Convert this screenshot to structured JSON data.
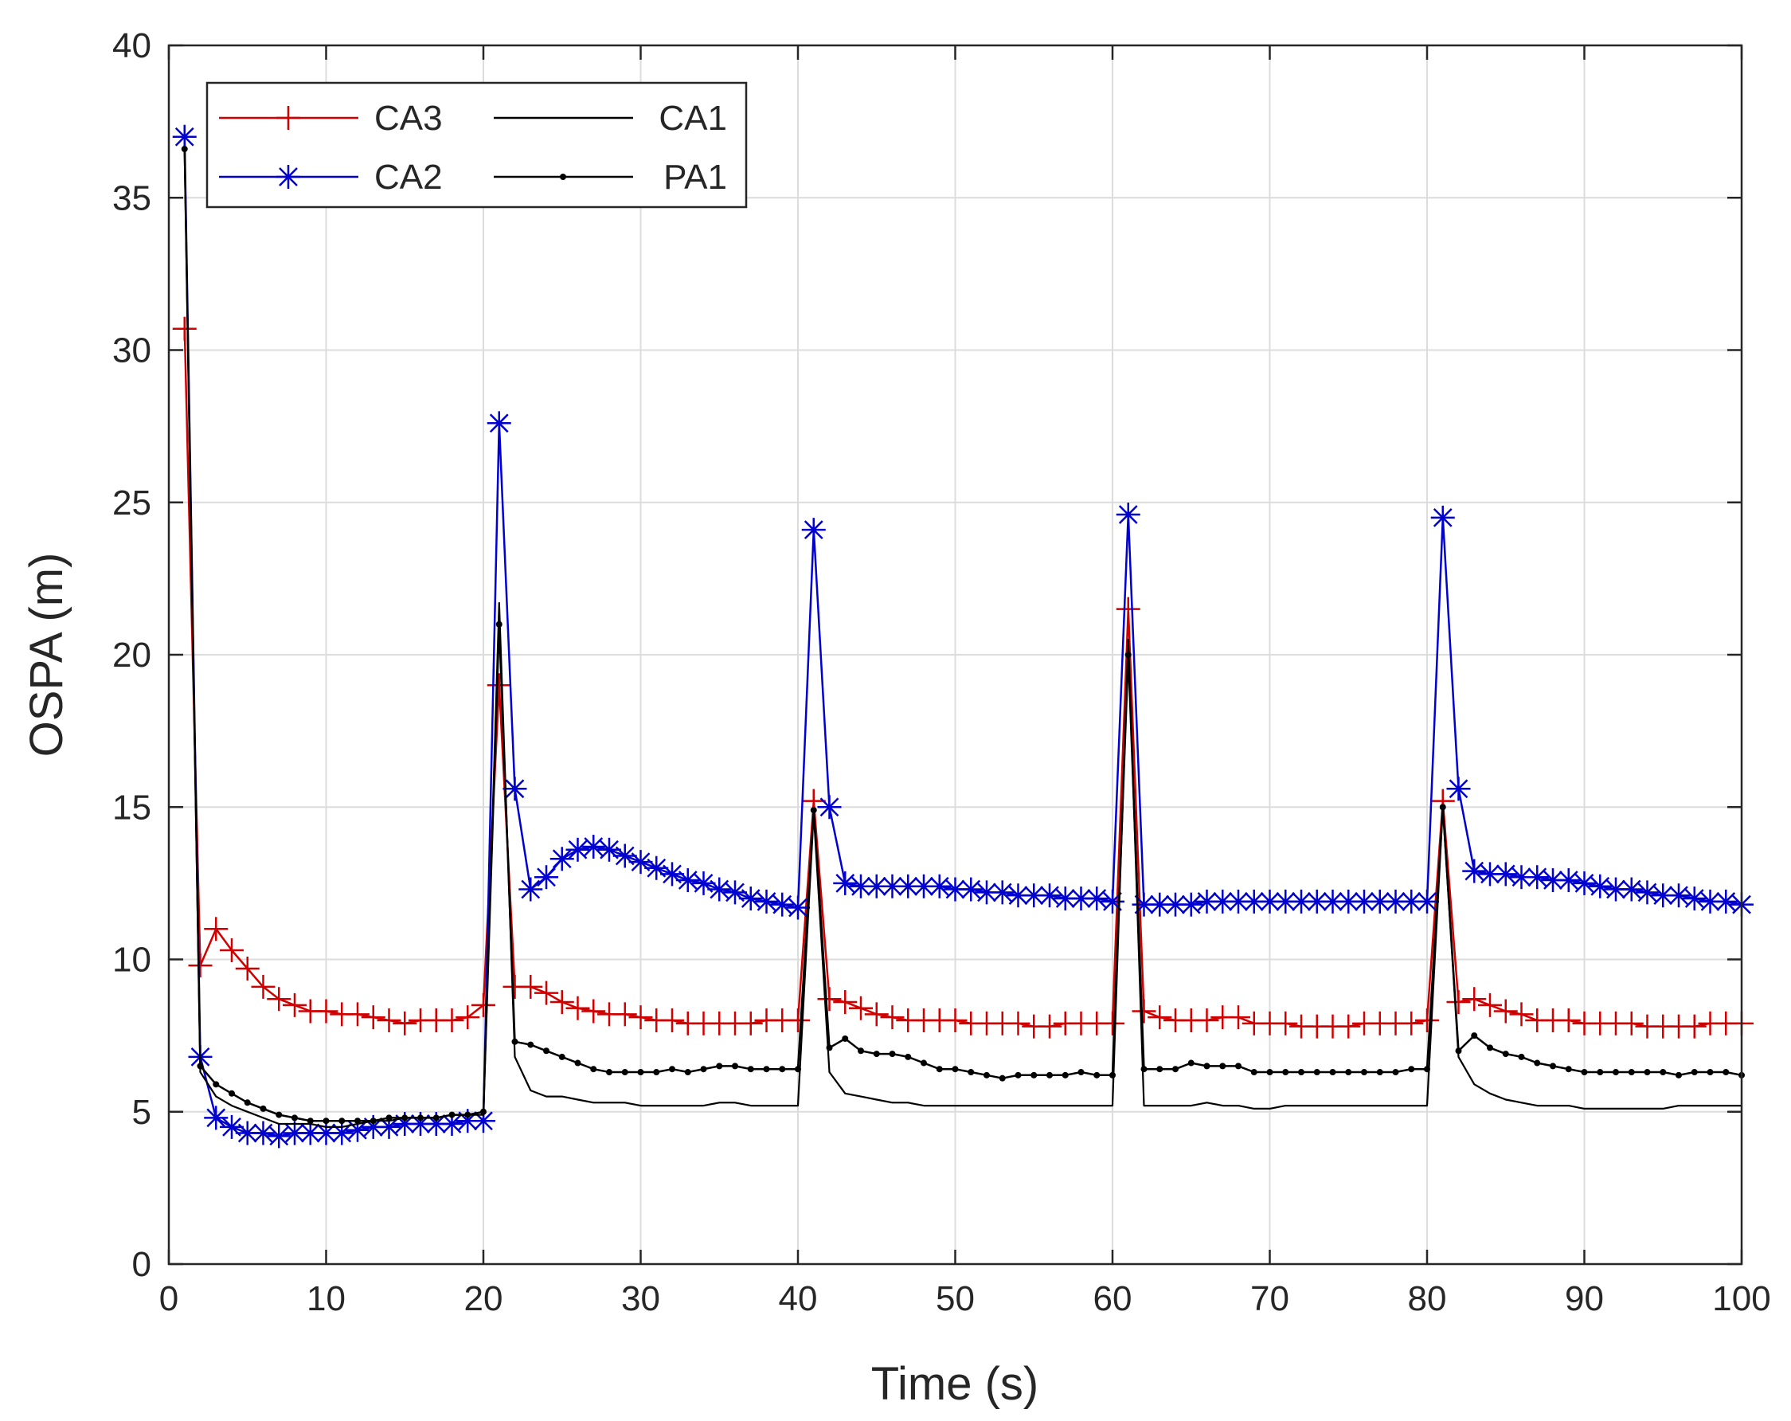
{
  "chart_data": {
    "type": "line",
    "title": "",
    "xlabel": "Time (s)",
    "ylabel": "OSPA (m)",
    "xlim": [
      0,
      100
    ],
    "ylim": [
      0,
      40
    ],
    "xticks": [
      0,
      10,
      20,
      30,
      40,
      50,
      60,
      70,
      80,
      90,
      100
    ],
    "yticks": [
      0,
      5,
      10,
      15,
      20,
      25,
      30,
      35,
      40
    ],
    "grid": true,
    "legend_position": "top-left",
    "series": [
      {
        "name": "CA3",
        "color": "#d00000",
        "marker": "plus",
        "x": [
          1,
          2,
          3,
          4,
          5,
          6,
          7,
          8,
          9,
          10,
          11,
          12,
          13,
          14,
          15,
          16,
          17,
          18,
          19,
          20,
          21,
          22,
          23,
          24,
          25,
          26,
          27,
          28,
          29,
          30,
          31,
          32,
          33,
          34,
          35,
          36,
          37,
          38,
          39,
          40,
          41,
          42,
          43,
          44,
          45,
          46,
          47,
          48,
          49,
          50,
          51,
          52,
          53,
          54,
          55,
          56,
          57,
          58,
          59,
          60,
          61,
          62,
          63,
          64,
          65,
          66,
          67,
          68,
          69,
          70,
          71,
          72,
          73,
          74,
          75,
          76,
          77,
          78,
          79,
          80,
          81,
          82,
          83,
          84,
          85,
          86,
          87,
          88,
          89,
          90,
          91,
          92,
          93,
          94,
          95,
          96,
          97,
          98,
          99,
          100
        ],
        "values": [
          30.7,
          9.8,
          11.0,
          10.3,
          9.7,
          9.1,
          8.7,
          8.5,
          8.3,
          8.3,
          8.2,
          8.2,
          8.1,
          8.0,
          7.9,
          8.0,
          8.0,
          8.0,
          8.1,
          8.5,
          19.0,
          9.1,
          9.1,
          8.9,
          8.6,
          8.4,
          8.3,
          8.2,
          8.2,
          8.1,
          8.0,
          8.0,
          7.9,
          7.9,
          7.9,
          7.9,
          7.9,
          8.0,
          8.0,
          8.0,
          15.2,
          8.7,
          8.6,
          8.4,
          8.2,
          8.1,
          8.0,
          8.0,
          8.0,
          8.0,
          7.9,
          7.9,
          7.9,
          7.9,
          7.8,
          7.8,
          7.9,
          7.9,
          7.9,
          7.9,
          21.5,
          8.3,
          8.1,
          8.0,
          8.0,
          8.0,
          8.1,
          8.1,
          7.9,
          7.9,
          7.9,
          7.8,
          7.8,
          7.8,
          7.8,
          7.9,
          7.9,
          7.9,
          7.9,
          8.0,
          15.2,
          8.6,
          8.7,
          8.5,
          8.3,
          8.2,
          8.0,
          8.0,
          8.0,
          7.9,
          7.9,
          7.9,
          7.9,
          7.8,
          7.8,
          7.8,
          7.8,
          7.9,
          7.9,
          7.9
        ]
      },
      {
        "name": "CA2",
        "color": "#0000d0",
        "marker": "asterisk",
        "x": [
          1,
          2,
          3,
          4,
          5,
          6,
          7,
          8,
          9,
          10,
          11,
          12,
          13,
          14,
          15,
          16,
          17,
          18,
          19,
          20,
          21,
          22,
          23,
          24,
          25,
          26,
          27,
          28,
          29,
          30,
          31,
          32,
          33,
          34,
          35,
          36,
          37,
          38,
          39,
          40,
          41,
          42,
          43,
          44,
          45,
          46,
          47,
          48,
          49,
          50,
          51,
          52,
          53,
          54,
          55,
          56,
          57,
          58,
          59,
          60,
          61,
          62,
          63,
          64,
          65,
          66,
          67,
          68,
          69,
          70,
          71,
          72,
          73,
          74,
          75,
          76,
          77,
          78,
          79,
          80,
          81,
          82,
          83,
          84,
          85,
          86,
          87,
          88,
          89,
          90,
          91,
          92,
          93,
          94,
          95,
          96,
          97,
          98,
          99,
          100
        ],
        "values": [
          37.0,
          6.8,
          4.8,
          4.5,
          4.3,
          4.3,
          4.2,
          4.3,
          4.3,
          4.3,
          4.3,
          4.4,
          4.5,
          4.5,
          4.6,
          4.6,
          4.6,
          4.6,
          4.7,
          4.7,
          27.6,
          15.6,
          12.3,
          12.7,
          13.3,
          13.6,
          13.7,
          13.6,
          13.4,
          13.2,
          13.0,
          12.8,
          12.6,
          12.5,
          12.3,
          12.2,
          12.0,
          11.9,
          11.8,
          11.7,
          24.1,
          15.0,
          12.5,
          12.4,
          12.4,
          12.4,
          12.4,
          12.4,
          12.4,
          12.3,
          12.3,
          12.2,
          12.2,
          12.1,
          12.1,
          12.1,
          12.0,
          12.0,
          12.0,
          11.9,
          24.6,
          11.8,
          11.8,
          11.8,
          11.8,
          11.9,
          11.9,
          11.9,
          11.9,
          11.9,
          11.9,
          11.9,
          11.9,
          11.9,
          11.9,
          11.9,
          11.9,
          11.9,
          11.9,
          11.9,
          24.5,
          15.6,
          12.9,
          12.8,
          12.8,
          12.7,
          12.7,
          12.6,
          12.6,
          12.5,
          12.4,
          12.3,
          12.3,
          12.2,
          12.1,
          12.1,
          12.0,
          11.9,
          11.9,
          11.8
        ]
      },
      {
        "name": "CA1",
        "color": "#000000",
        "marker": "none",
        "x": [
          1,
          2,
          3,
          4,
          5,
          6,
          7,
          8,
          9,
          10,
          11,
          12,
          13,
          14,
          15,
          16,
          17,
          18,
          19,
          20,
          21,
          22,
          23,
          24,
          25,
          26,
          27,
          28,
          29,
          30,
          31,
          32,
          33,
          34,
          35,
          36,
          37,
          38,
          39,
          40,
          41,
          42,
          43,
          44,
          45,
          46,
          47,
          48,
          49,
          50,
          51,
          52,
          53,
          54,
          55,
          56,
          57,
          58,
          59,
          60,
          61,
          62,
          63,
          64,
          65,
          66,
          67,
          68,
          69,
          70,
          71,
          72,
          73,
          74,
          75,
          76,
          77,
          78,
          79,
          80,
          81,
          82,
          83,
          84,
          85,
          86,
          87,
          88,
          89,
          90,
          91,
          92,
          93,
          94,
          95,
          96,
          97,
          98,
          99,
          100
        ],
        "values": [
          36.5,
          6.3,
          5.5,
          5.2,
          5.0,
          4.8,
          4.6,
          4.6,
          4.6,
          4.5,
          4.5,
          4.6,
          4.7,
          4.7,
          4.8,
          4.8,
          4.8,
          4.9,
          4.9,
          4.9,
          21.7,
          6.8,
          5.7,
          5.5,
          5.5,
          5.4,
          5.3,
          5.3,
          5.3,
          5.2,
          5.2,
          5.2,
          5.2,
          5.2,
          5.3,
          5.3,
          5.2,
          5.2,
          5.2,
          5.2,
          14.8,
          6.3,
          5.6,
          5.5,
          5.4,
          5.3,
          5.3,
          5.2,
          5.2,
          5.2,
          5.2,
          5.2,
          5.2,
          5.2,
          5.2,
          5.2,
          5.2,
          5.2,
          5.2,
          5.2,
          20.5,
          5.2,
          5.2,
          5.2,
          5.2,
          5.3,
          5.2,
          5.2,
          5.1,
          5.1,
          5.2,
          5.2,
          5.2,
          5.2,
          5.2,
          5.2,
          5.2,
          5.2,
          5.2,
          5.2,
          15.0,
          6.8,
          5.9,
          5.6,
          5.4,
          5.3,
          5.2,
          5.2,
          5.2,
          5.1,
          5.1,
          5.1,
          5.1,
          5.1,
          5.1,
          5.2,
          5.2,
          5.2,
          5.2,
          5.2
        ]
      },
      {
        "name": "PA1",
        "color": "#000000",
        "marker": "dot",
        "x": [
          1,
          2,
          3,
          4,
          5,
          6,
          7,
          8,
          9,
          10,
          11,
          12,
          13,
          14,
          15,
          16,
          17,
          18,
          19,
          20,
          21,
          22,
          23,
          24,
          25,
          26,
          27,
          28,
          29,
          30,
          31,
          32,
          33,
          34,
          35,
          36,
          37,
          38,
          39,
          40,
          41,
          42,
          43,
          44,
          45,
          46,
          47,
          48,
          49,
          50,
          51,
          52,
          53,
          54,
          55,
          56,
          57,
          58,
          59,
          60,
          61,
          62,
          63,
          64,
          65,
          66,
          67,
          68,
          69,
          70,
          71,
          72,
          73,
          74,
          75,
          76,
          77,
          78,
          79,
          80,
          81,
          82,
          83,
          84,
          85,
          86,
          87,
          88,
          89,
          90,
          91,
          92,
          93,
          94,
          95,
          96,
          97,
          98,
          99,
          100
        ],
        "values": [
          36.6,
          6.5,
          5.9,
          5.6,
          5.3,
          5.1,
          4.9,
          4.8,
          4.7,
          4.7,
          4.7,
          4.7,
          4.7,
          4.8,
          4.8,
          4.8,
          4.8,
          4.9,
          4.9,
          5.0,
          21.0,
          7.3,
          7.2,
          7.0,
          6.8,
          6.6,
          6.4,
          6.3,
          6.3,
          6.3,
          6.3,
          6.4,
          6.3,
          6.4,
          6.5,
          6.5,
          6.4,
          6.4,
          6.4,
          6.4,
          14.9,
          7.1,
          7.4,
          7.0,
          6.9,
          6.9,
          6.8,
          6.6,
          6.4,
          6.4,
          6.3,
          6.2,
          6.1,
          6.2,
          6.2,
          6.2,
          6.2,
          6.3,
          6.2,
          6.2,
          20.0,
          6.4,
          6.4,
          6.4,
          6.6,
          6.5,
          6.5,
          6.5,
          6.3,
          6.3,
          6.3,
          6.3,
          6.3,
          6.3,
          6.3,
          6.3,
          6.3,
          6.3,
          6.4,
          6.4,
          15.0,
          7.0,
          7.5,
          7.1,
          6.9,
          6.8,
          6.6,
          6.5,
          6.4,
          6.3,
          6.3,
          6.3,
          6.3,
          6.3,
          6.3,
          6.2,
          6.3,
          6.3,
          6.3,
          6.2
        ]
      }
    ]
  }
}
